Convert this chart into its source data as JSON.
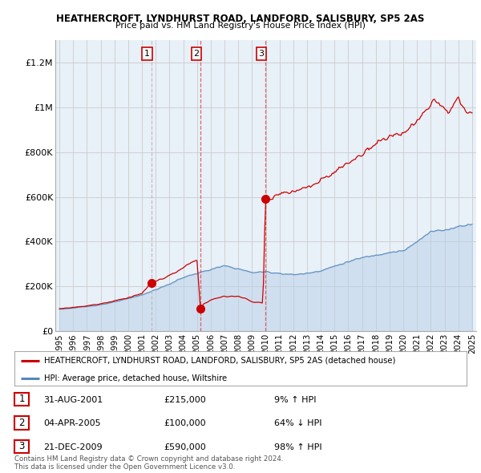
{
  "title": "HEATHERCROFT, LYNDHURST ROAD, LANDFORD, SALISBURY, SP5 2AS",
  "subtitle": "Price paid vs. HM Land Registry's House Price Index (HPI)",
  "ylim": [
    0,
    1300000
  ],
  "yticks": [
    0,
    200000,
    400000,
    600000,
    800000,
    1000000,
    1200000
  ],
  "ytick_labels": [
    "£0",
    "£200K",
    "£400K",
    "£600K",
    "£800K",
    "£1M",
    "£1.2M"
  ],
  "xlim_left": 1994.7,
  "xlim_right": 2025.3,
  "sales": [
    {
      "date_num": 2001.667,
      "price": 215000,
      "label": "1",
      "vline_style": "--",
      "vline_color": "#bbbbbb",
      "vline_alpha": 0.9
    },
    {
      "date_num": 2005.25,
      "price": 100000,
      "label": "2",
      "vline_style": "--",
      "vline_color": "#dd4444",
      "vline_alpha": 0.8
    },
    {
      "date_num": 2009.972,
      "price": 590000,
      "label": "3",
      "vline_style": "--",
      "vline_color": "#dd4444",
      "vline_alpha": 0.8
    }
  ],
  "sale_color": "#cc0000",
  "hpi_color": "#5588bb",
  "chart_bg": "#e8f0f8",
  "legend_entries": [
    "HEATHERCROFT, LYNDHURST ROAD, LANDFORD, SALISBURY, SP5 2AS (detached house)",
    "HPI: Average price, detached house, Wiltshire"
  ],
  "table_rows": [
    {
      "num": "1",
      "date": "31-AUG-2001",
      "price": "£215,000",
      "hpi": "9% ↑ HPI"
    },
    {
      "num": "2",
      "date": "04-APR-2005",
      "price": "£100,000",
      "hpi": "64% ↓ HPI"
    },
    {
      "num": "3",
      "date": "21-DEC-2009",
      "price": "£590,000",
      "hpi": "98% ↑ HPI"
    }
  ],
  "footer": "Contains HM Land Registry data © Crown copyright and database right 2024.\nThis data is licensed under the Open Government Licence v3.0.",
  "background_color": "#ffffff",
  "grid_color": "#cccccc"
}
